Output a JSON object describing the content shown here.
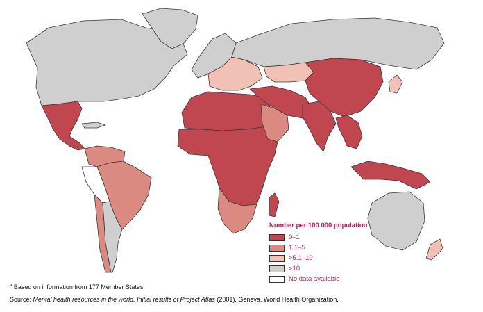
{
  "legend": {
    "title": "Number per 100 000 population",
    "items": [
      {
        "label": "0–1",
        "color": "#c0464f"
      },
      {
        "label": "1.1–5",
        "color": "#db8a82"
      },
      {
        "label": ">5.1–10",
        "color": "#f1c1b6"
      },
      {
        "label": ">10",
        "color": "#cfcfcf"
      },
      {
        "label": "No data available",
        "color": "#ffffff"
      }
    ]
  },
  "footnotes": {
    "a_mark": "a",
    "a_text": " Based on information from 177 Member States.",
    "source_label": "Source: ",
    "source_title": "Mental health resources in the world. Initial results of Project Atlas",
    "source_rest": " (2001). Geneva, World Health Organization."
  },
  "regions": {
    "north_america": "cat4",
    "greenland": "cat4",
    "mexico_central_america": "cat1",
    "caribbean": "cat4",
    "south_america_north": "cat2",
    "brazil": "cat2",
    "peru_bolivia": "cat5",
    "chile": "cat2",
    "argentina": "cat4",
    "europe_west": "cat4",
    "europe_east": "cat3",
    "russia": "cat4",
    "north_africa": "cat1",
    "sub_saharan_africa": "cat1",
    "southern_africa": "cat2",
    "middle_east": "cat1",
    "arabian_peninsula": "cat2",
    "central_asia": "cat3",
    "china": "cat1",
    "south_asia": "cat1",
    "southeast_asia": "cat1",
    "indonesia": "cat1",
    "japan": "cat3",
    "australia": "cat4",
    "new_zealand": "cat3",
    "madagascar": "cat1"
  }
}
